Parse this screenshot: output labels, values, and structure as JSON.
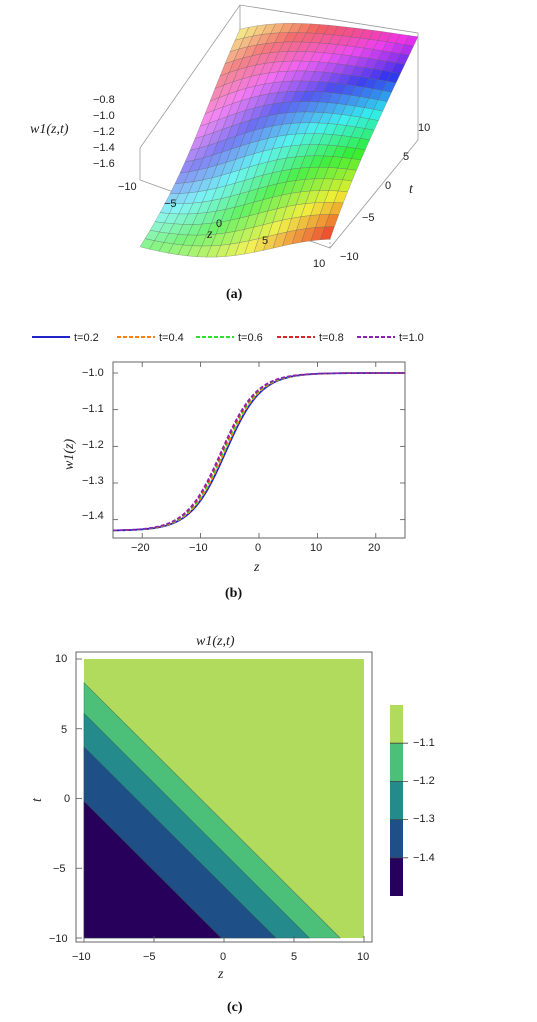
{
  "chart_data": [
    {
      "type": "surface3d",
      "panel_label": "(a)",
      "zlabel": "w1(z,t)",
      "xlabel": "z",
      "ylabel": "t",
      "x_ticks": [
        "−10",
        "−5",
        "0",
        "5",
        "10"
      ],
      "y_ticks": [
        "−10",
        "−5",
        "0",
        "5",
        "10"
      ],
      "z_ticks": [
        "−0.8",
        "−1.0",
        "−1.2",
        "−1.4",
        "−1.6"
      ],
      "zlim": [
        -1.7,
        -0.75
      ]
    },
    {
      "type": "line",
      "panel_label": "(b)",
      "xlabel": "z",
      "ylabel": "w1(z)",
      "xlim": [
        -25,
        25
      ],
      "ylim": [
        -1.45,
        -0.97
      ],
      "x_ticks": [
        "−20",
        "−10",
        "0",
        "10",
        "20"
      ],
      "y_ticks": [
        "−1.0",
        "−1.1",
        "−1.2",
        "−1.3",
        "−1.4"
      ],
      "legend_position": "top",
      "series": [
        {
          "name": "t=0.2",
          "t": 0.2,
          "color": "#1f23c8",
          "style": "solid"
        },
        {
          "name": "t=0.4",
          "t": 0.4,
          "color": "#ff7f0e",
          "style": "dashed"
        },
        {
          "name": "t=0.6",
          "t": 0.6,
          "color": "#2ee02e",
          "style": "dashed"
        },
        {
          "name": "t=0.8",
          "t": 0.8,
          "color": "#d62728",
          "style": "dashed"
        },
        {
          "name": "t=1.0",
          "t": 1.0,
          "color": "#8b22b8",
          "style": "dashed"
        }
      ],
      "curve_model": {
        "low": -1.43,
        "high": -1.0,
        "center_at_t0": -5.5,
        "shift_per_t": -1.0,
        "width": 3.0
      }
    },
    {
      "type": "contour",
      "panel_label": "(c)",
      "title": "w1(z,t)",
      "xlabel": "z",
      "ylabel": "t",
      "xlim": [
        -10,
        10
      ],
      "ylim": [
        -10,
        10
      ],
      "x_ticks": [
        "−10",
        "−5",
        "0",
        "5",
        "10"
      ],
      "y_ticks": [
        "−10",
        "−5",
        "0",
        "5",
        "10"
      ],
      "levels": [
        -1.4,
        -1.3,
        -1.2,
        -1.1
      ],
      "level_labels": [
        "−1.1",
        "−1.2",
        "−1.3",
        "−1.4"
      ],
      "band_colors": [
        "#26005a",
        "#1e4f86",
        "#248a8c",
        "#4cbf78",
        "#b1db5c"
      ],
      "contour_lines_z_plus_t_equal": [
        -10.2,
        -6.3,
        -3.9,
        -1.7
      ]
    }
  ]
}
